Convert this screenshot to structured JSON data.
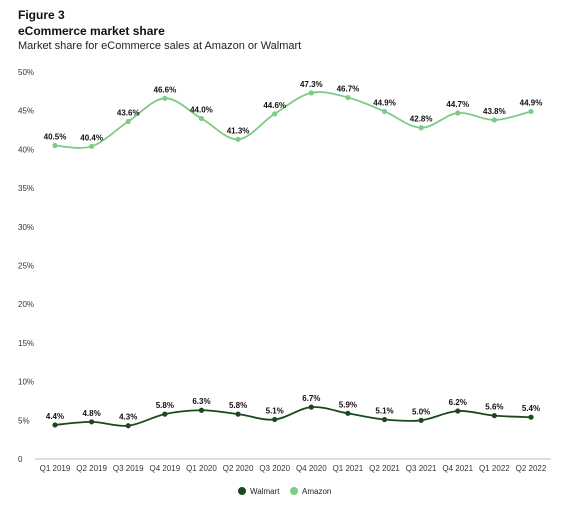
{
  "figure_label": "Figure 3",
  "chart_data": {
    "type": "line",
    "title": "eCommerce market share",
    "subtitle": "Market share for eCommerce sales at Amazon or Walmart",
    "categories": [
      "Q1 2019",
      "Q2 2019",
      "Q3 2019",
      "Q4 2019",
      "Q1 2020",
      "Q2 2020",
      "Q3 2020",
      "Q4 2020",
      "Q1 2021",
      "Q2 2021",
      "Q3 2021",
      "Q4 2021",
      "Q1 2022",
      "Q2 2022"
    ],
    "ylim": [
      0,
      50
    ],
    "yticks": [
      0,
      5,
      10,
      15,
      20,
      25,
      30,
      35,
      40,
      45,
      50
    ],
    "ytick_labels": [
      "0",
      "5%",
      "10%",
      "15%",
      "20%",
      "25%",
      "30%",
      "35%",
      "40%",
      "45%",
      "50%"
    ],
    "grid": false,
    "legend_position": "bottom",
    "series": [
      {
        "name": "Walmart",
        "color": "#1a4a1a",
        "values": [
          4.4,
          4.8,
          4.3,
          5.8,
          6.3,
          5.8,
          5.1,
          6.7,
          5.9,
          5.1,
          5.0,
          6.2,
          5.6,
          5.4
        ],
        "labels": [
          "4.4%",
          "4.8%",
          "4.3%",
          "5.8%",
          "6.3%",
          "5.8%",
          "5.1%",
          "6.7%",
          "5.9%",
          "5.1%",
          "5.0%",
          "6.2%",
          "5.6%",
          "5.4%"
        ]
      },
      {
        "name": "Amazon",
        "color": "#7dcc85",
        "values": [
          40.5,
          40.4,
          43.6,
          46.6,
          44.0,
          41.3,
          44.6,
          47.3,
          46.7,
          44.9,
          42.8,
          44.7,
          43.8,
          44.9
        ],
        "labels": [
          "40.5%",
          "40.4%",
          "43.6%",
          "46.6%",
          "44.0%",
          "41.3%",
          "44.6%",
          "47.3%",
          "46.7%",
          "44.9%",
          "42.8%",
          "44.7%",
          "43.8%",
          "44.9%"
        ]
      }
    ]
  }
}
